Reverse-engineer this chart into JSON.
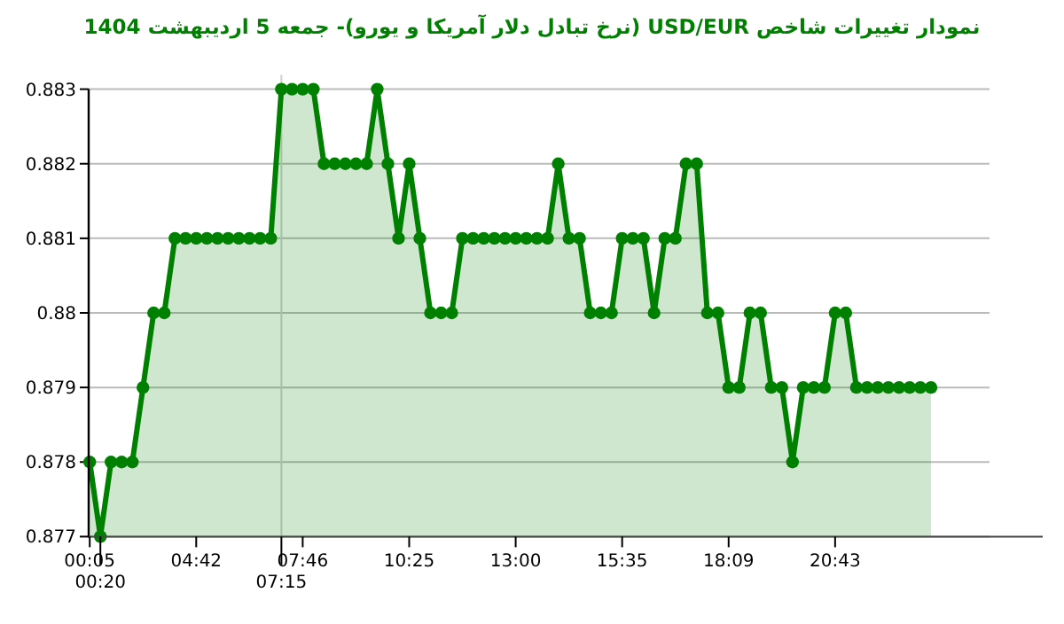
{
  "chart_data": {
    "type": "area",
    "title": "نمودار تغییرات شاخص USD/EUR (نرخ تبادل دلار آمریکا و یورو)- جمعه  5 اردیبهشت 1404",
    "categories": [
      "00:05",
      "00:20",
      null,
      null,
      null,
      null,
      null,
      null,
      null,
      null,
      "04:42",
      null,
      null,
      null,
      null,
      null,
      null,
      null,
      "07:15",
      null,
      "07:46",
      null,
      null,
      null,
      null,
      null,
      null,
      null,
      null,
      null,
      "10:25",
      null,
      null,
      null,
      null,
      null,
      null,
      null,
      null,
      null,
      "13:00",
      null,
      null,
      null,
      null,
      null,
      null,
      null,
      null,
      null,
      "15:35",
      null,
      null,
      null,
      null,
      null,
      null,
      null,
      null,
      null,
      "18:09",
      null,
      null,
      null,
      null,
      null,
      null,
      null,
      null,
      null,
      "20:43",
      null,
      null,
      null,
      null,
      null,
      null,
      null,
      null,
      null
    ],
    "series": [
      {
        "color": "#008000",
        "values": [
          0.878,
          0.877,
          0.878,
          0.878,
          0.878,
          0.879,
          0.88,
          0.88,
          0.881,
          0.881,
          0.881,
          0.881,
          0.881,
          0.881,
          0.881,
          0.881,
          0.881,
          0.881,
          0.883,
          0.883,
          0.883,
          0.883,
          0.882,
          0.882,
          0.882,
          0.882,
          0.882,
          0.883,
          0.882,
          0.881,
          0.882,
          0.881,
          0.88,
          0.88,
          0.88,
          0.881,
          0.881,
          0.881,
          0.881,
          0.881,
          0.881,
          0.881,
          0.881,
          0.881,
          0.882,
          0.881,
          0.881,
          0.88,
          0.88,
          0.88,
          0.881,
          0.881,
          0.881,
          0.88,
          0.881,
          0.881,
          0.882,
          0.882,
          0.88,
          0.88,
          0.879,
          0.879,
          0.88,
          0.88,
          0.879,
          0.879,
          0.878,
          0.879,
          0.879,
          0.879,
          0.88,
          0.88,
          0.879,
          0.879,
          0.879,
          0.879,
          0.879,
          0.879,
          0.879,
          0.879
        ]
      }
    ],
    "ylim": [
      0.877,
      0.883
    ],
    "yticks": [
      0.877,
      0.878,
      0.879,
      0.88,
      0.881,
      0.882,
      0.883
    ],
    "grid": "y",
    "marker": "circle",
    "line_style": "solid",
    "ref_lines": [
      {
        "axis": "x",
        "value": "07:15",
        "color": "#c8d2c8"
      }
    ]
  }
}
